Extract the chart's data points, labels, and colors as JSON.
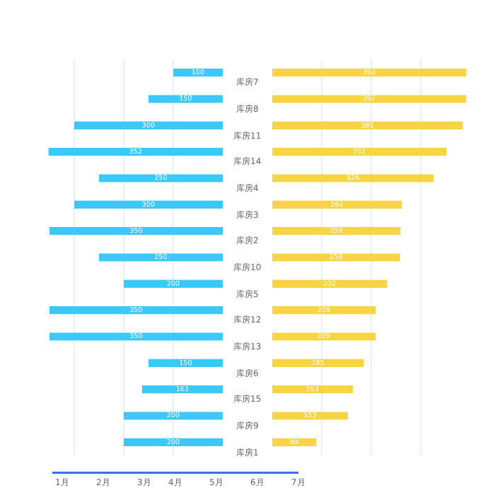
{
  "chart_data": [
    {
      "type": "bar",
      "orientation": "horizontal",
      "categories": [
        "库房7",
        "库房8",
        "库房11",
        "库房14",
        "库房4",
        "库房3",
        "库房2",
        "库房10",
        "库房5",
        "库房12",
        "库房13",
        "库房6",
        "库房15",
        "库房9",
        "库房1"
      ],
      "series": [
        {
          "color": "#3dc8fb",
          "values": [
            100,
            150,
            300,
            352,
            250,
            300,
            350,
            250,
            200,
            350,
            350,
            150,
            163,
            200,
            200
          ]
        }
      ],
      "grid": "x",
      "data_labels": true,
      "tick_labels": "y",
      "annotations": [
        "1月",
        "2月",
        "3月",
        "4月",
        "5月",
        "6月",
        "7月"
      ]
    },
    {
      "type": "bar",
      "orientation": "horizontal",
      "series": [
        {
          "color": "#f7d443",
          "values": [
            392,
            392,
            385,
            352,
            326,
            262,
            259,
            258,
            232,
            209,
            209,
            185,
            163,
            153,
            89
          ]
        }
      ],
      "grid": "x",
      "data_labels": true,
      "tick_labels": false
    }
  ]
}
